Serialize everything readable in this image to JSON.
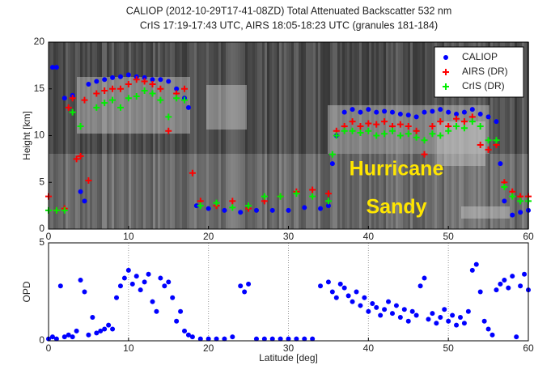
{
  "chart_data": [
    {
      "type": "scatter",
      "title": "CALIOP (2012-10-29T17-41-08ZD) Total Attenuated Backscatter 532 nm",
      "subtitle": "CrIS 17:19-17:43 UTC, AIRS 18:05-18:23 UTC (granules 181-184)",
      "x_label": "Latitude [deg]",
      "y_label": "Height [km]",
      "xlim": [
        0,
        60
      ],
      "xticks": [
        0,
        10,
        20,
        30,
        40,
        50,
        60
      ],
      "ylim": [
        0,
        20
      ],
      "yticks": [
        0,
        5,
        10,
        15,
        20
      ],
      "legend": "upper right",
      "annotations": [
        "Hurricane",
        "Sandy"
      ],
      "series": [
        {
          "name": "CALIOP",
          "color": "#0000ff",
          "marker": "circle",
          "x": [
            0.5,
            1,
            2,
            3,
            4,
            4.5,
            5,
            6,
            7,
            8,
            9,
            10,
            11,
            12,
            13,
            14,
            15,
            16,
            17,
            17.5,
            18.5,
            20,
            22,
            24,
            26,
            28,
            30,
            32,
            34,
            35,
            35.5,
            36,
            37,
            38,
            39,
            40,
            41,
            42,
            43,
            44,
            45,
            46,
            47,
            48,
            49,
            50,
            51,
            52,
            53,
            54,
            55,
            56,
            56.5,
            57,
            58,
            59,
            60
          ],
          "values": [
            17.3,
            17.3,
            14,
            14.3,
            4,
            3,
            15.5,
            15.8,
            16,
            16.2,
            16.3,
            16.5,
            16.3,
            16.2,
            16,
            16,
            15.8,
            15,
            14,
            13,
            2.5,
            2.2,
            2,
            1.8,
            2,
            2,
            2,
            2.3,
            2.2,
            2.5,
            7,
            10,
            12.5,
            12.8,
            12.5,
            12.8,
            12.5,
            12.6,
            12.5,
            12.3,
            12.2,
            12,
            12.5,
            12.6,
            12.8,
            12.5,
            12.3,
            12.5,
            12.8,
            12.3,
            12,
            11.5,
            7,
            3,
            1.5,
            1.8,
            2
          ]
        },
        {
          "name": "AIRS (DR)",
          "color": "#ff0000",
          "marker": "plus",
          "x": [
            0,
            1,
            2,
            2.5,
            3,
            3.5,
            4,
            4.5,
            5,
            6,
            7,
            8,
            9,
            10,
            11,
            12,
            13,
            14,
            15,
            16,
            17,
            18,
            19,
            21,
            23,
            25,
            27,
            29,
            31,
            33,
            35,
            36,
            37,
            38,
            39,
            40,
            41,
            42,
            43,
            44,
            45,
            46,
            47,
            48,
            49,
            50,
            51,
            52,
            53,
            54,
            55,
            56,
            57,
            58,
            59,
            60
          ],
          "values": [
            3.5,
            2,
            2.2,
            13,
            14,
            7.5,
            7.8,
            13.8,
            5.2,
            14.5,
            14.8,
            15,
            15,
            15.5,
            16,
            15.8,
            15.5,
            15,
            10.5,
            14.5,
            15,
            6,
            3,
            2.5,
            3,
            2.2,
            3,
            3.5,
            4,
            4.2,
            3.8,
            10.5,
            11,
            11.5,
            11,
            11.3,
            11.2,
            11.5,
            11,
            11.2,
            11,
            10.5,
            8,
            11,
            11.5,
            11,
            11.8,
            11.5,
            12,
            9,
            8.5,
            9,
            5,
            4,
            3.5,
            3.5
          ]
        },
        {
          "name": "CrIS (DR)",
          "color": "#00ee00",
          "marker": "plus",
          "x": [
            0,
            1,
            2,
            3,
            4,
            6,
            7,
            8,
            9,
            10,
            11,
            12,
            13,
            14,
            15,
            16,
            17,
            19,
            21,
            23,
            25,
            27,
            29,
            31,
            33,
            35,
            35.5,
            36,
            37,
            38,
            39,
            40,
            41,
            42,
            43,
            44,
            45,
            46,
            47,
            48,
            49,
            50,
            51,
            52,
            53,
            54,
            55,
            56,
            57,
            58,
            59,
            60
          ],
          "values": [
            2,
            2,
            2,
            12.5,
            11,
            13,
            13.5,
            13.8,
            13,
            14,
            14.2,
            14.8,
            14.5,
            13.8,
            12,
            14,
            13.8,
            2.5,
            2.8,
            2.3,
            2.5,
            3.5,
            3.5,
            3.8,
            3.5,
            3,
            8,
            10,
            10.5,
            10.5,
            10.3,
            10.5,
            10,
            10.2,
            10.5,
            10,
            10.2,
            9.8,
            9.5,
            10.2,
            10,
            10.5,
            11,
            10.8,
            11.5,
            11,
            9.5,
            9.5,
            4.5,
            3.5,
            3,
            3
          ]
        }
      ]
    },
    {
      "type": "scatter",
      "x_label": "Latitude [deg]",
      "y_label": "OPD",
      "xlim": [
        0,
        60
      ],
      "xticks": [
        0,
        10,
        20,
        30,
        40,
        50,
        60
      ],
      "ylim": [
        0,
        5
      ],
      "yticks": [
        0,
        5
      ],
      "grid": true,
      "series": [
        {
          "color": "#0000ff",
          "marker": "circle",
          "x": [
            0,
            0.5,
            1,
            1.5,
            2,
            2.5,
            3,
            3.5,
            4,
            4.5,
            5,
            5.5,
            6,
            6.5,
            7,
            7.5,
            8,
            8.5,
            9,
            9.5,
            10,
            10.5,
            11,
            11.5,
            12,
            12.5,
            13,
            13.5,
            14,
            14.5,
            15,
            15.5,
            16,
            16.5,
            17,
            17.5,
            18,
            19,
            20,
            21,
            22,
            23,
            24,
            24.5,
            25,
            26,
            27,
            28,
            29,
            30,
            31,
            32,
            33,
            34,
            35,
            35.5,
            36,
            36.5,
            37,
            37.5,
            38,
            38.5,
            39,
            39.5,
            40,
            40.5,
            41,
            41.5,
            42,
            42.5,
            43,
            43.5,
            44,
            44.5,
            45,
            45.5,
            46,
            46.5,
            47,
            47.5,
            48,
            48.5,
            49,
            49.5,
            50,
            50.5,
            51,
            51.5,
            52,
            52.5,
            53,
            53.5,
            54,
            54.5,
            55,
            55.5,
            56,
            56.5,
            57,
            57.5,
            58,
            58.5,
            59,
            59.5,
            60
          ],
          "values": [
            0.1,
            0.2,
            0.1,
            2.8,
            0.2,
            0.3,
            0.2,
            0.5,
            3.1,
            2.5,
            0.3,
            1.2,
            0.4,
            0.5,
            0.6,
            0.8,
            0.6,
            2.2,
            2.8,
            3.2,
            3.6,
            2.9,
            3.3,
            2.6,
            3.0,
            3.4,
            2.0,
            1.5,
            3.2,
            2.8,
            3.0,
            2.2,
            1.0,
            1.5,
            0.5,
            0.3,
            0.2,
            0.1,
            0.1,
            0.1,
            0.1,
            0.2,
            2.8,
            2.5,
            2.9,
            0.1,
            0.1,
            0.1,
            0.1,
            0.1,
            0.1,
            0.1,
            0.1,
            2.8,
            3.0,
            2.5,
            2.2,
            2.9,
            2.7,
            2.3,
            2.0,
            2.5,
            1.8,
            2.2,
            1.5,
            1.9,
            1.7,
            1.3,
            1.6,
            2.0,
            1.4,
            1.8,
            1.2,
            1.6,
            1.0,
            1.5,
            1.3,
            2.8,
            3.2,
            1.1,
            1.4,
            0.9,
            1.2,
            1.6,
            1.0,
            1.3,
            0.8,
            1.2,
            0.9,
            1.5,
            3.6,
            3.9,
            2.5,
            1.0,
            0.6,
            0.3,
            2.6,
            2.9,
            3.1,
            2.7,
            3.3,
            0.2,
            2.8,
            3.4,
            2.6
          ]
        }
      ]
    }
  ]
}
